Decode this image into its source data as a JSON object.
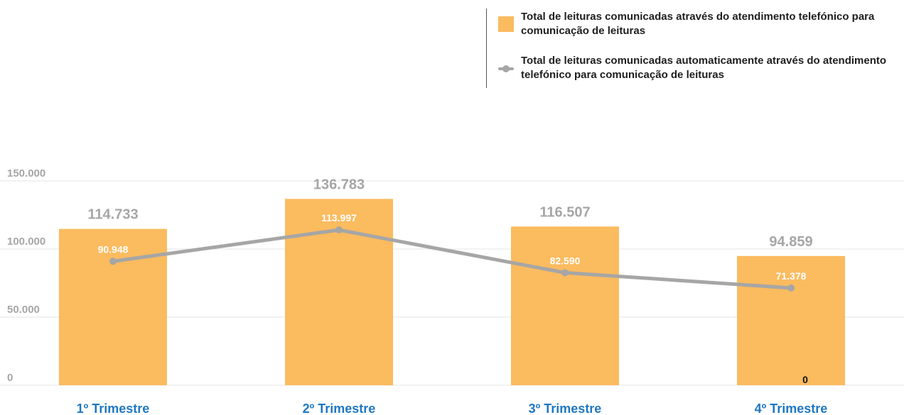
{
  "legend": {
    "bar_label": "Total de leituras comunicadas através do atendimento telefónico para comunicação de leituras",
    "line_label": "Total de leituras comunicadas automaticamente através do atendimento telefónico para comunicação de leituras"
  },
  "colors": {
    "bar": "#fbbb5f",
    "line": "#a6a6a6",
    "grid": "#e6e6e6",
    "category": "#1f78c3",
    "label": "#a6a6a6"
  },
  "chart_data": {
    "type": "bar",
    "categories": [
      "1º Trimestre",
      "2º Trimestre",
      "3º Trimestre",
      "4º Trimestre"
    ],
    "series": [
      {
        "name": "Total de leituras comunicadas através do atendimento telefónico para comunicação de leituras",
        "type": "bar",
        "values": [
          114733,
          136783,
          116507,
          94859
        ],
        "labels": [
          "114.733",
          "136.783",
          "116.507",
          "94.859"
        ]
      },
      {
        "name": "Total de leituras comunicadas automaticamente através do atendimento telefónico para comunicação de leituras",
        "type": "line",
        "values": [
          90948,
          113997,
          82590,
          71378
        ],
        "labels": [
          "90.948",
          "113.997",
          "82.590",
          "71.378"
        ]
      }
    ],
    "yticks": [
      0,
      50000,
      100000,
      150000
    ],
    "ytick_labels": [
      "0",
      "50.000",
      "100.000",
      "150.000"
    ],
    "ylim": [
      0,
      150000
    ],
    "grid": true,
    "legend_position": "top-right",
    "annotations": [
      {
        "category": "4º Trimestre",
        "text": "0"
      }
    ]
  }
}
